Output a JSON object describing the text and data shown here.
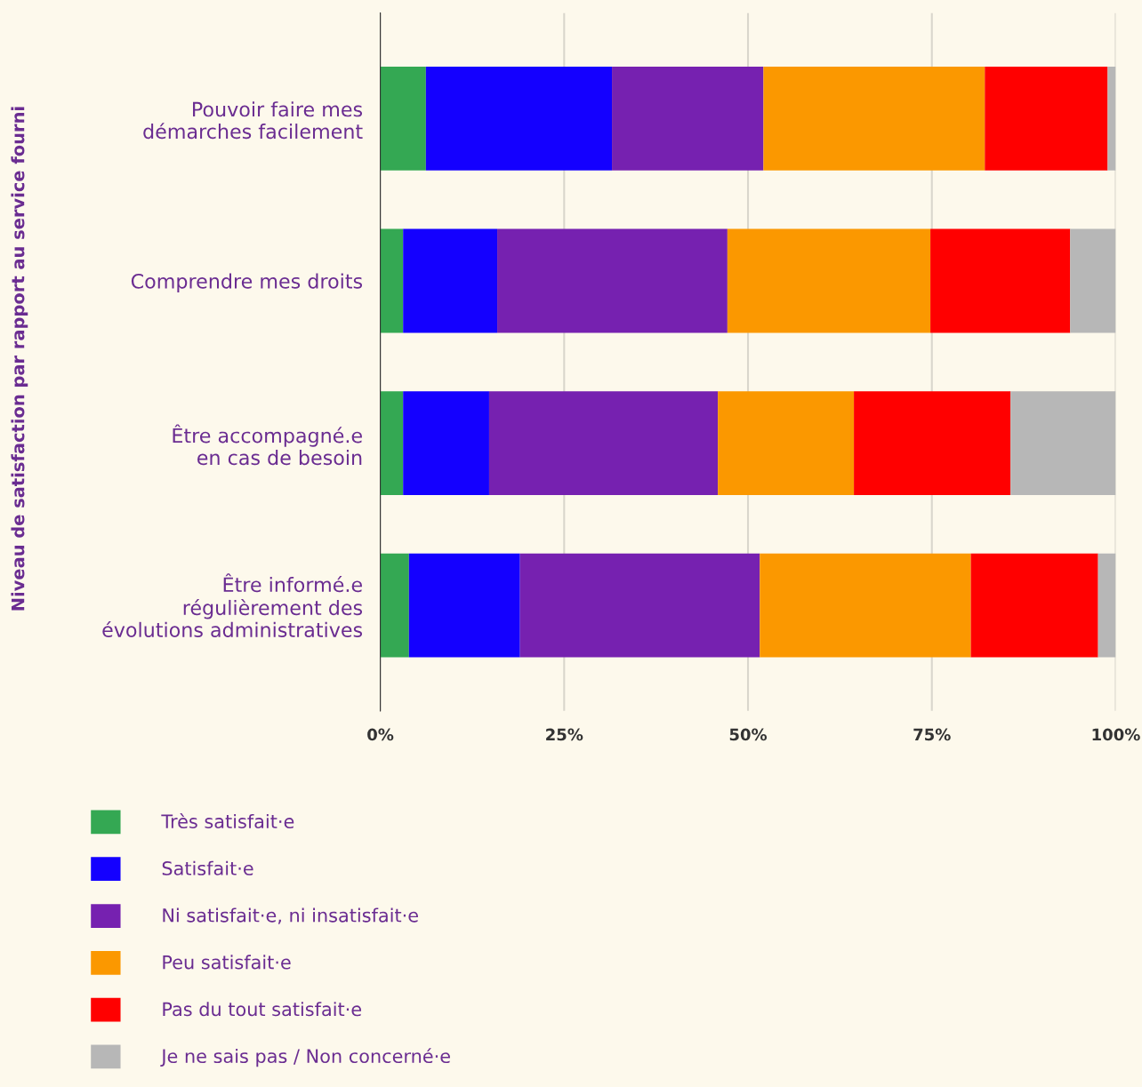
{
  "chart_data": {
    "type": "bar",
    "orientation": "horizontal",
    "stacked": true,
    "ylabel": "Niveau de satisfaction par rapport au service fourni",
    "categories": [
      "Pouvoir faire mes\ndémarches facilement",
      "Comprendre mes droits",
      "Être accompagné.e\nen cas de besoin",
      "Être informé.e\nrégulièrement des\névolutions administratives"
    ],
    "series": [
      {
        "name": "Très satisfait·e",
        "color": "#34a853",
        "values": [
          6.2,
          3.1,
          3.1,
          3.9
        ]
      },
      {
        "name": "Satisfait·e",
        "color": "#1400ff",
        "values": [
          25.3,
          12.8,
          11.7,
          15.1
        ]
      },
      {
        "name": "Ni satisfait·e, ni insatisfait·e",
        "color": "#7621b0",
        "values": [
          20.6,
          31.3,
          31.1,
          32.6
        ]
      },
      {
        "name": "Peu satisfait·e",
        "color": "#fb9800",
        "values": [
          30.1,
          27.6,
          18.5,
          28.7
        ]
      },
      {
        "name": "Pas du tout satisfait·e",
        "color": "#ff0000",
        "values": [
          16.7,
          19.0,
          21.3,
          17.3
        ]
      },
      {
        "name": "Je ne sais pas / Non concerné·e",
        "color": "#b7b7b7",
        "values": [
          1.1,
          6.2,
          14.3,
          2.4
        ]
      }
    ],
    "xlim": [
      0,
      100
    ],
    "xticks": [
      {
        "value": 0,
        "label": "0%"
      },
      {
        "value": 25,
        "label": "25%"
      },
      {
        "value": 50,
        "label": "50%"
      },
      {
        "value": 75,
        "label": "75%"
      },
      {
        "value": 100,
        "label": "100%"
      }
    ],
    "grid": "x",
    "legend": "bottom left"
  }
}
